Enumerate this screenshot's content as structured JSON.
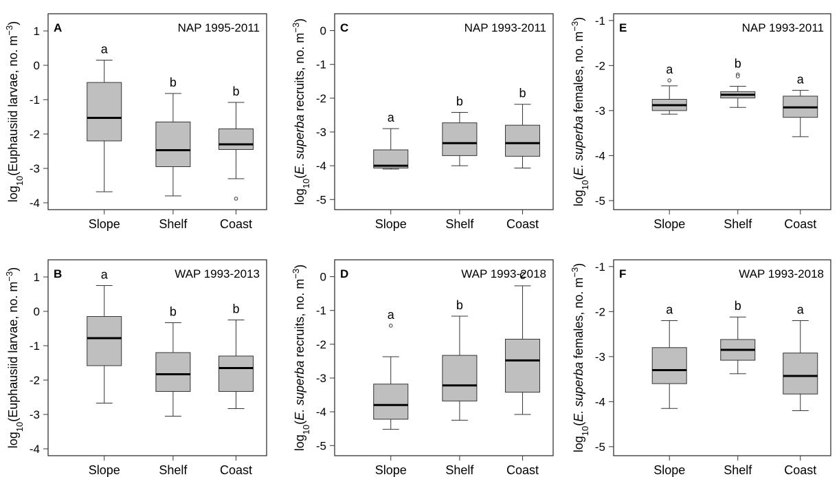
{
  "chart_data": [
    {
      "panel": "A",
      "title": "NAP 1995-2011",
      "type": "box",
      "ylabel_main": "log",
      "ylabel_sub": "10",
      "ylabel_pre": "(",
      "ylabel_italic": "",
      "ylabel_post": "Euphausiid larvae, no. m",
      "ylabel_sup": "−3",
      "ylabel_end": ")",
      "ylim": [
        -4.2,
        1.5
      ],
      "yticks": [
        1,
        0,
        -1,
        -2,
        -3,
        -4
      ],
      "categories": [
        "Slope",
        "Shelf",
        "Coast"
      ],
      "series": [
        {
          "category": "Slope",
          "min": -3.68,
          "q1": -2.2,
          "median": -1.53,
          "q3": -0.5,
          "max": 0.15,
          "outliers": [],
          "letter": "a"
        },
        {
          "category": "Shelf",
          "min": -3.8,
          "q1": -2.95,
          "median": -2.47,
          "q3": -1.65,
          "max": -0.82,
          "outliers": [],
          "letter": "b"
        },
        {
          "category": "Coast",
          "min": -3.3,
          "q1": -2.45,
          "median": -2.3,
          "q3": -1.85,
          "max": -1.08,
          "outliers": [
            -3.88
          ],
          "letter": "b"
        }
      ]
    },
    {
      "panel": "C",
      "title": "NAP 1993-2011",
      "type": "box",
      "ylabel_main": "log",
      "ylabel_sub": "10",
      "ylabel_pre": "(",
      "ylabel_italic": "E. superba",
      "ylabel_post": " recruits, no. m",
      "ylabel_sup": "−3",
      "ylabel_end": ")",
      "ylim": [
        -5.3,
        0.5
      ],
      "yticks": [
        0,
        -1,
        -2,
        -3,
        -4,
        -5
      ],
      "categories": [
        "Slope",
        "Shelf",
        "Coast"
      ],
      "series": [
        {
          "category": "Slope",
          "min": -4.1,
          "q1": -4.07,
          "median": -4.0,
          "q3": -3.53,
          "max": -2.9,
          "outliers": [],
          "letter": "a"
        },
        {
          "category": "Shelf",
          "min": -4.0,
          "q1": -3.7,
          "median": -3.33,
          "q3": -2.73,
          "max": -2.42,
          "outliers": [],
          "letter": "b"
        },
        {
          "category": "Coast",
          "min": -4.07,
          "q1": -3.72,
          "median": -3.33,
          "q3": -2.8,
          "max": -2.18,
          "outliers": [],
          "letter": "b"
        }
      ]
    },
    {
      "panel": "E",
      "title": "NAP 1993-2011",
      "type": "box",
      "ylabel_main": "log",
      "ylabel_sub": "10",
      "ylabel_pre": "(",
      "ylabel_italic": "E. superba",
      "ylabel_post": " females, no. m",
      "ylabel_sup": "−3",
      "ylabel_end": ")",
      "ylim": [
        -5.2,
        -0.85
      ],
      "yticks": [
        -1,
        -2,
        -3,
        -4,
        -5
      ],
      "categories": [
        "Slope",
        "Shelf",
        "Coast"
      ],
      "series": [
        {
          "category": "Slope",
          "min": -3.08,
          "q1": -3.0,
          "median": -2.88,
          "q3": -2.75,
          "max": -2.45,
          "outliers": [
            -2.33
          ],
          "letter": "a"
        },
        {
          "category": "Shelf",
          "min": -2.93,
          "q1": -2.72,
          "median": -2.65,
          "q3": -2.58,
          "max": -2.46,
          "outliers": [
            -2.2,
            -2.24
          ],
          "letter": "b"
        },
        {
          "category": "Coast",
          "min": -3.58,
          "q1": -3.15,
          "median": -2.93,
          "q3": -2.68,
          "max": -2.55,
          "outliers": [],
          "letter": "a"
        }
      ]
    },
    {
      "panel": "B",
      "title": "WAP 1993-2013",
      "type": "box",
      "ylabel_main": "log",
      "ylabel_sub": "10",
      "ylabel_pre": "(",
      "ylabel_italic": "",
      "ylabel_post": "Euphausiid larvae, no. m",
      "ylabel_sup": "−3",
      "ylabel_end": ")",
      "ylim": [
        -4.2,
        1.5
      ],
      "yticks": [
        1,
        0,
        -1,
        -2,
        -3,
        -4
      ],
      "categories": [
        "Slope",
        "Shelf",
        "Coast"
      ],
      "series": [
        {
          "category": "Slope",
          "min": -2.67,
          "q1": -1.58,
          "median": -0.78,
          "q3": -0.15,
          "max": 0.75,
          "outliers": [],
          "letter": "a"
        },
        {
          "category": "Shelf",
          "min": -3.05,
          "q1": -2.33,
          "median": -1.83,
          "q3": -1.2,
          "max": -0.33,
          "outliers": [],
          "letter": "b"
        },
        {
          "category": "Coast",
          "min": -2.83,
          "q1": -2.33,
          "median": -1.65,
          "q3": -1.3,
          "max": -0.25,
          "outliers": [],
          "letter": "b"
        }
      ]
    },
    {
      "panel": "D",
      "title": "WAP 1993-2018",
      "type": "box",
      "ylabel_main": "log",
      "ylabel_sub": "10",
      "ylabel_pre": "(",
      "ylabel_italic": "E. superba",
      "ylabel_post": " recruits, no. m",
      "ylabel_sup": "−3",
      "ylabel_end": ")",
      "ylim": [
        -5.3,
        0.5
      ],
      "yticks": [
        0,
        -1,
        -2,
        -3,
        -4,
        -5
      ],
      "categories": [
        "Slope",
        "Shelf",
        "Coast"
      ],
      "series": [
        {
          "category": "Slope",
          "min": -4.52,
          "q1": -4.22,
          "median": -3.8,
          "q3": -3.18,
          "max": -2.37,
          "outliers": [
            -1.45
          ],
          "letter": "a"
        },
        {
          "category": "Shelf",
          "min": -4.25,
          "q1": -3.68,
          "median": -3.22,
          "q3": -2.33,
          "max": -1.17,
          "outliers": [],
          "letter": "b"
        },
        {
          "category": "Coast",
          "min": -4.08,
          "q1": -3.42,
          "median": -2.48,
          "q3": -1.85,
          "max": -0.27,
          "outliers": [],
          "letter": "c"
        }
      ]
    },
    {
      "panel": "F",
      "title": "WAP 1993-2018",
      "type": "box",
      "ylabel_main": "log",
      "ylabel_sub": "10",
      "ylabel_pre": "(",
      "ylabel_italic": "E. superba",
      "ylabel_post": " females, no. m",
      "ylabel_sup": "−3",
      "ylabel_end": ")",
      "ylim": [
        -5.2,
        -0.85
      ],
      "yticks": [
        -1,
        -2,
        -3,
        -4,
        -5
      ],
      "categories": [
        "Slope",
        "Shelf",
        "Coast"
      ],
      "series": [
        {
          "category": "Slope",
          "min": -4.15,
          "q1": -3.6,
          "median": -3.3,
          "q3": -2.8,
          "max": -2.2,
          "outliers": [],
          "letter": "a"
        },
        {
          "category": "Shelf",
          "min": -3.38,
          "q1": -3.08,
          "median": -2.85,
          "q3": -2.62,
          "max": -2.12,
          "outliers": [],
          "letter": "b"
        },
        {
          "category": "Coast",
          "min": -4.2,
          "q1": -3.83,
          "median": -3.43,
          "q3": -2.92,
          "max": -2.2,
          "outliers": [],
          "letter": "a"
        }
      ]
    }
  ]
}
